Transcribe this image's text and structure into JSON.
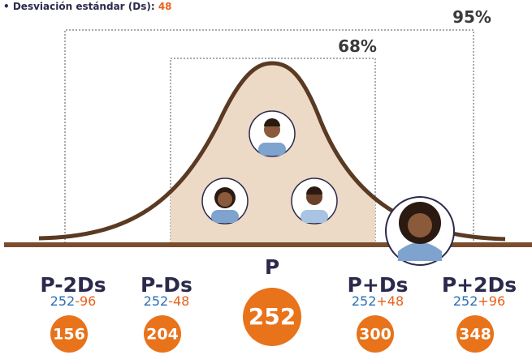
{
  "header": {
    "label": "• Desviación estándar (Ds):",
    "value": "48"
  },
  "intervals": [
    {
      "label": "95%"
    },
    {
      "label": "68%"
    }
  ],
  "points": [
    {
      "name": "P-2Ds",
      "base": "252",
      "offset": "-96",
      "result": "156"
    },
    {
      "name": "P-Ds",
      "base": "252",
      "offset": "-48",
      "result": "204"
    },
    {
      "name": "P",
      "result": "252"
    },
    {
      "name": "P+Ds",
      "base": "252",
      "offset": "+48",
      "result": "300"
    },
    {
      "name": "P+2Ds",
      "base": "252",
      "offset": "+96",
      "result": "348"
    }
  ]
}
